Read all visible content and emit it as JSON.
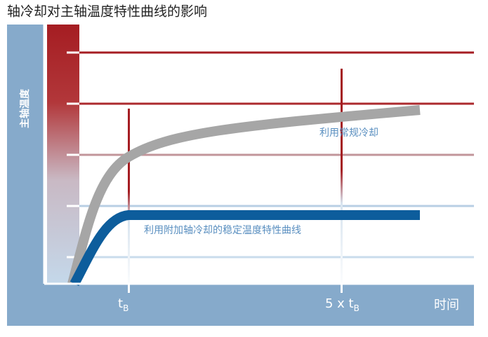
{
  "title": "轴冷却对主轴温度特性曲线的影响",
  "y_axis_label": "主轴温度",
  "x_axis_label": "时间",
  "x_ticks": [
    {
      "prefix": "t",
      "sub": "B"
    },
    {
      "prefix": "5 x t",
      "sub": "B"
    }
  ],
  "curves": [
    {
      "label": "利用常规冷却"
    },
    {
      "label": "利用附加轴冷却的稳定温度特性曲线"
    }
  ]
}
